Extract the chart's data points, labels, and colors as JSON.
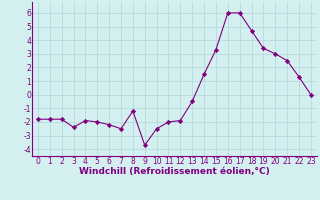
{
  "x": [
    0,
    1,
    2,
    3,
    4,
    5,
    6,
    7,
    8,
    9,
    10,
    11,
    12,
    13,
    14,
    15,
    16,
    17,
    18,
    19,
    20,
    21,
    22,
    23
  ],
  "y": [
    -1.8,
    -1.8,
    -1.8,
    -2.4,
    -1.9,
    -2.0,
    -2.2,
    -2.5,
    -1.2,
    -3.7,
    -2.5,
    -2.0,
    -1.9,
    -0.5,
    1.5,
    3.3,
    6.0,
    6.0,
    4.7,
    3.4,
    3.0,
    2.5,
    1.3,
    0.0
  ],
  "line_color": "#800080",
  "marker": "D",
  "marker_size": 2.2,
  "bg_color": "#d4efef",
  "grid_color": "#b0d8d8",
  "xlabel": "Windchill (Refroidissement éolien,°C)",
  "xlabel_fontsize": 6.5,
  "ylim": [
    -4.5,
    6.8
  ],
  "xlim": [
    -0.5,
    23.5
  ],
  "yticks": [
    -4,
    -3,
    -2,
    -1,
    0,
    1,
    2,
    3,
    4,
    5,
    6
  ],
  "xticks": [
    0,
    1,
    2,
    3,
    4,
    5,
    6,
    7,
    8,
    9,
    10,
    11,
    12,
    13,
    14,
    15,
    16,
    17,
    18,
    19,
    20,
    21,
    22,
    23
  ],
  "tick_fontsize": 5.5
}
